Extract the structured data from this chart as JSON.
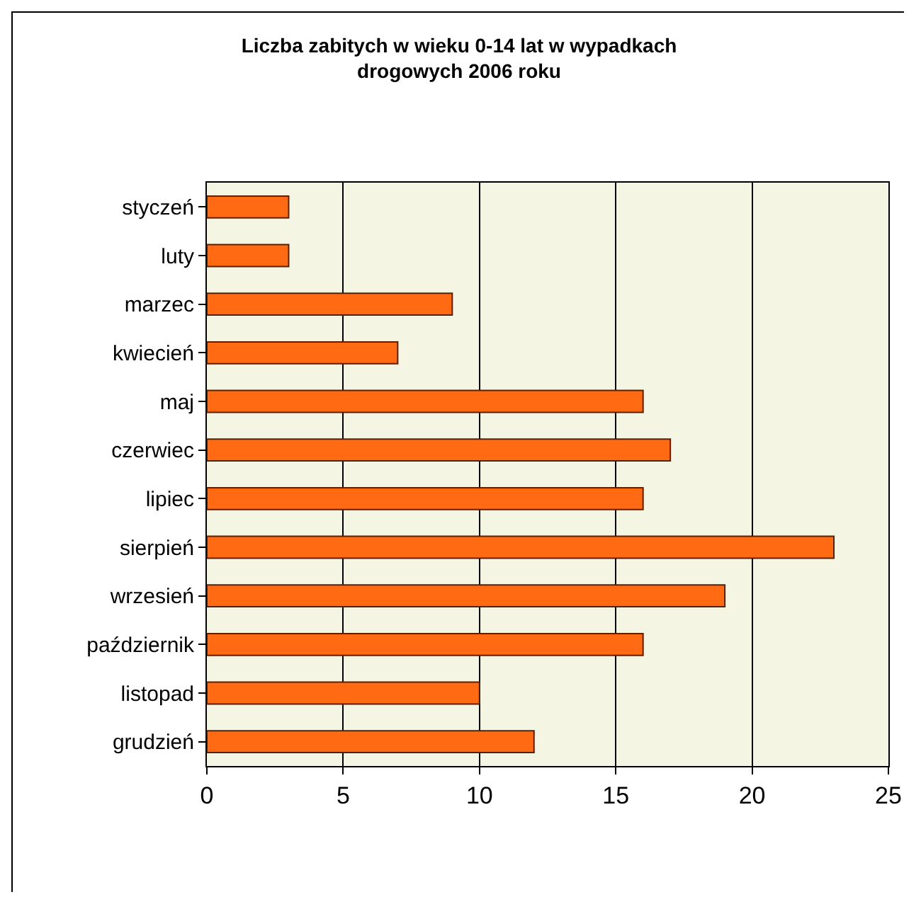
{
  "chart_data": {
    "type": "bar",
    "orientation": "horizontal",
    "title": "Liczba zabitych w wieku 0-14 lat w wypadkach drogowych 2006 roku",
    "categories": [
      "styczeń",
      "luty",
      "marzec",
      "kwiecień",
      "maj",
      "czerwiec",
      "lipiec",
      "sierpień",
      "wrzesień",
      "październik",
      "listopad",
      "grudzień"
    ],
    "values": [
      3,
      3,
      9,
      7,
      16,
      17,
      16,
      23,
      19,
      16,
      10,
      12
    ],
    "color": "#ff6a13",
    "xlim": [
      0,
      25
    ],
    "xticks": [
      0,
      5,
      10,
      15,
      20,
      25
    ],
    "grid": "x",
    "legend": false
  }
}
